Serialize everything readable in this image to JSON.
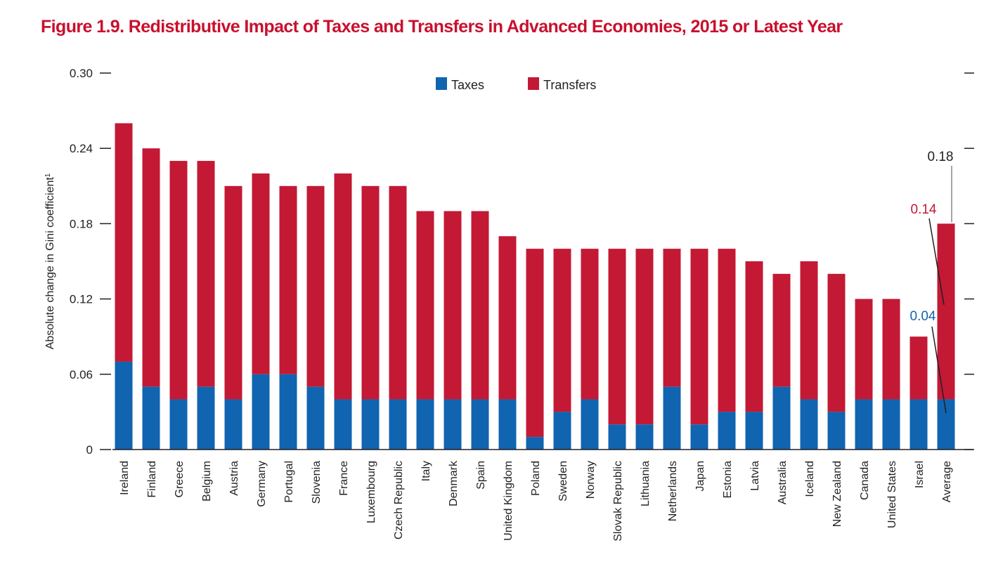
{
  "figure": {
    "title": "Figure 1.9. Redistributive Impact of Taxes and Transfers in Advanced Economies, 2015 or Latest Year"
  },
  "colors": {
    "taxes": "#1064b0",
    "transfers": "#c31935",
    "title": "#c8102e",
    "axis": "#231f20"
  },
  "chart_data": {
    "type": "bar",
    "stacked": true,
    "title": "Figure 1.9. Redistributive Impact of Taxes and Transfers in Advanced Economies, 2015 or Latest Year",
    "xlabel": "",
    "ylabel": "Absolute change in Gini coefficient",
    "ylabel_superscript": "1",
    "ylim": [
      0,
      0.3
    ],
    "yticks": [
      "0",
      "0.06",
      "0.12",
      "0.18",
      "0.24",
      "0.30"
    ],
    "ytick_values": [
      0,
      0.06,
      0.12,
      0.18,
      0.24,
      0.3
    ],
    "legend": {
      "position": "top-center",
      "entries": [
        "Taxes",
        "Transfers"
      ]
    },
    "categories": [
      "Ireland",
      "Finland",
      "Greece",
      "Belgium",
      "Austria",
      "Germany",
      "Portugal",
      "Slovenia",
      "France",
      "Luxembourg",
      "Czech Republic",
      "Italy",
      "Denmark",
      "Spain",
      "United Kingdom",
      "Poland",
      "Sweden",
      "Norway",
      "Slovak Republic",
      "Lithuania",
      "Netherlands",
      "Japan",
      "Estonia",
      "Latvia",
      "Australia",
      "Iceland",
      "New Zealand",
      "Canada",
      "United States",
      "Israel",
      "Average"
    ],
    "series": [
      {
        "name": "Taxes",
        "values": [
          0.07,
          0.05,
          0.04,
          0.05,
          0.04,
          0.06,
          0.06,
          0.05,
          0.04,
          0.04,
          0.04,
          0.04,
          0.04,
          0.04,
          0.04,
          0.01,
          0.03,
          0.04,
          0.02,
          0.02,
          0.05,
          0.02,
          0.03,
          0.03,
          0.05,
          0.04,
          0.03,
          0.04,
          0.04,
          0.04,
          0.04
        ]
      },
      {
        "name": "Transfers",
        "values": [
          0.19,
          0.19,
          0.19,
          0.18,
          0.17,
          0.16,
          0.15,
          0.16,
          0.18,
          0.17,
          0.17,
          0.15,
          0.15,
          0.15,
          0.13,
          0.15,
          0.13,
          0.12,
          0.14,
          0.14,
          0.11,
          0.14,
          0.13,
          0.12,
          0.09,
          0.11,
          0.11,
          0.08,
          0.08,
          0.05,
          0.14
        ]
      }
    ],
    "annotations": [
      {
        "text": "0.18",
        "color": "#231f20"
      },
      {
        "text": "0.14",
        "color": "#c31935"
      },
      {
        "text": "0.04",
        "color": "#1064b0"
      }
    ]
  }
}
